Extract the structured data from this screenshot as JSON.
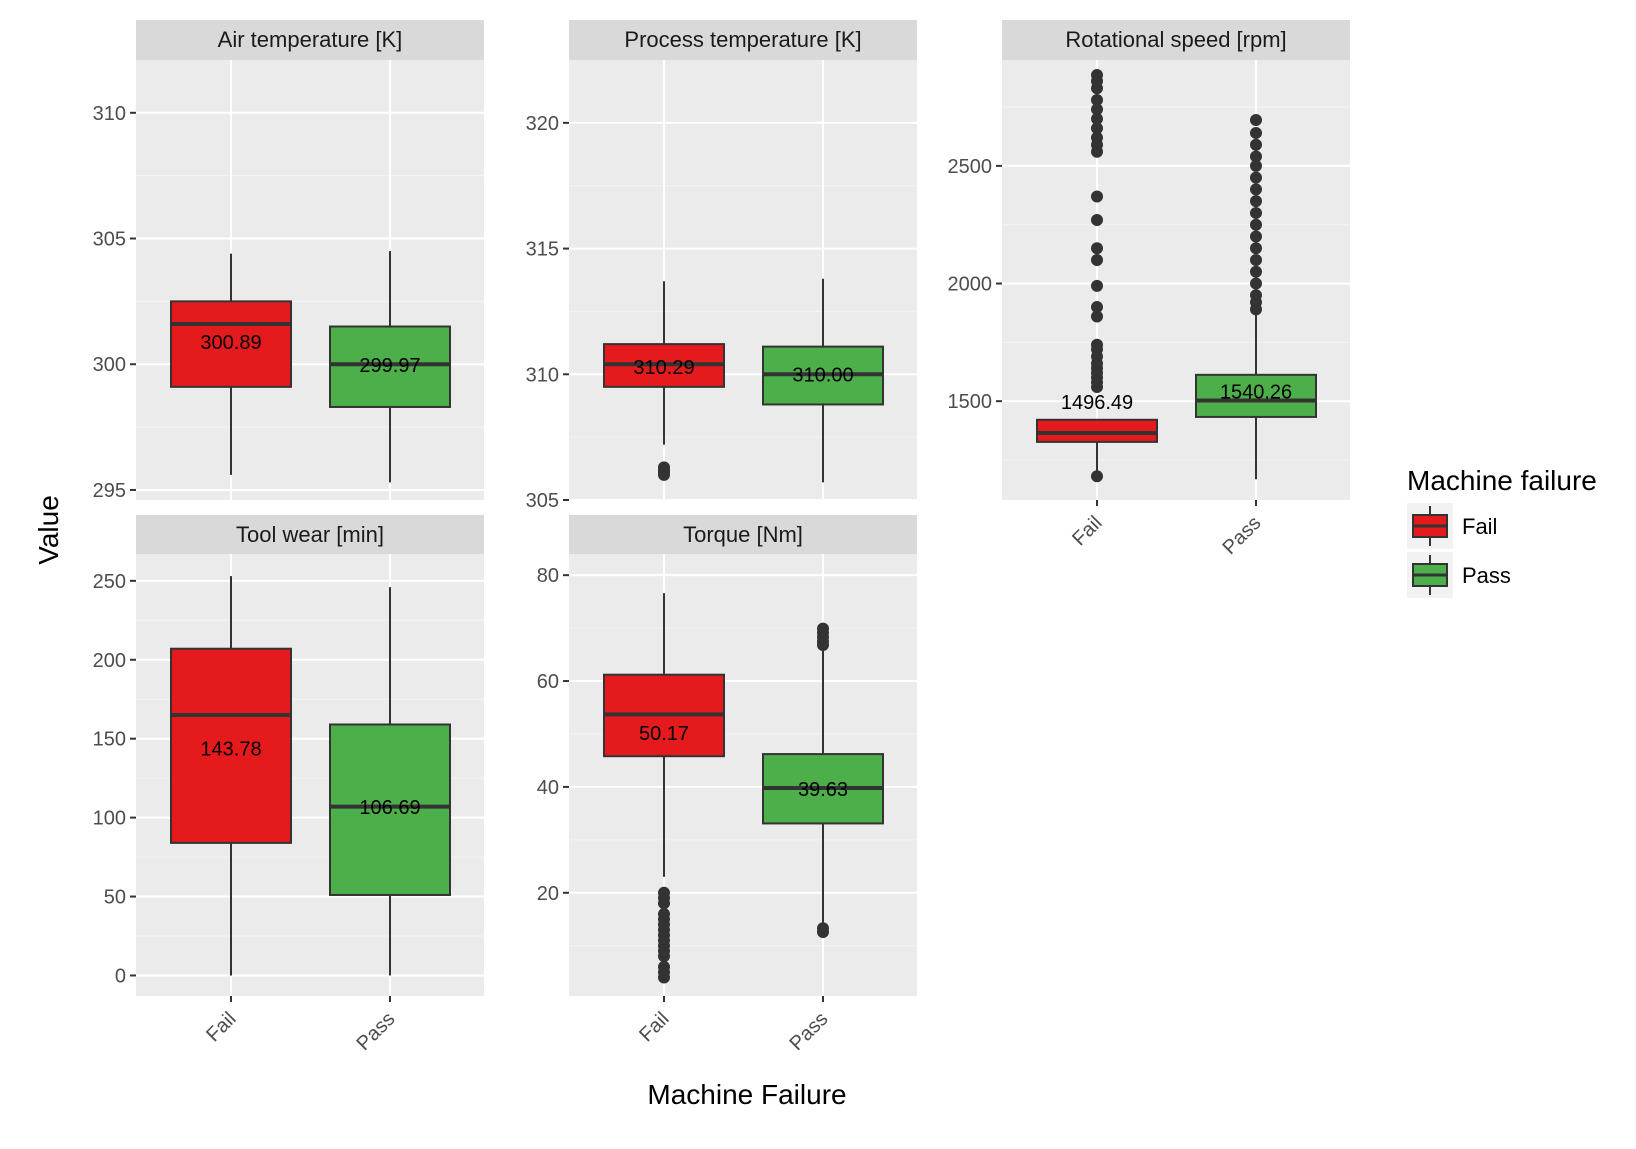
{
  "axis_titles": {
    "x": "Machine Failure",
    "y": "Value"
  },
  "legend": {
    "title": "Machine failure",
    "placement": "right",
    "items": [
      {
        "label": "Fail",
        "color": "#e41a1c"
      },
      {
        "label": "Pass",
        "color": "#4daf4a"
      }
    ]
  },
  "chart_data": {
    "type": "boxplot",
    "categories": [
      "Fail",
      "Pass"
    ],
    "colors": {
      "Fail": "#e41a1c",
      "Pass": "#4daf4a"
    },
    "panel_background": "#ebebeb",
    "strip_background": "#d9d9d9",
    "grid": true,
    "facets": [
      {
        "title": "Air temperature [K]",
        "ylim": [
          294.6,
          312.1
        ],
        "yticks": [
          295,
          300,
          305,
          310
        ],
        "x_ticks_shown": false,
        "boxes": [
          {
            "category": "Fail",
            "whisker_low": 295.6,
            "q1": 299.1,
            "median": 301.6,
            "q3": 302.5,
            "whisker_high": 304.4,
            "outliers": [],
            "mean_label": "300.89"
          },
          {
            "category": "Pass",
            "whisker_low": 295.3,
            "q1": 298.3,
            "median": 300.0,
            "q3": 301.5,
            "whisker_high": 304.5,
            "outliers": [],
            "mean_label": "299.97"
          }
        ]
      },
      {
        "title": "Process temperature [K]",
        "ylim": [
          305.0,
          322.5
        ],
        "yticks": [
          305,
          310,
          315,
          320
        ],
        "x_ticks_shown": false,
        "boxes": [
          {
            "category": "Fail",
            "whisker_low": 307.2,
            "q1": 309.5,
            "median": 310.4,
            "q3": 311.2,
            "whisker_high": 313.7,
            "outliers": [
              306.0,
              306.1,
              306.2,
              306.3
            ],
            "mean_label": "310.29"
          },
          {
            "category": "Pass",
            "whisker_low": 305.7,
            "q1": 308.8,
            "median": 310.0,
            "q3": 311.1,
            "whisker_high": 313.8,
            "outliers": [],
            "mean_label": "310.00"
          }
        ]
      },
      {
        "title": "Rotational speed [rpm]",
        "ylim": [
          1080,
          2950
        ],
        "yticks": [
          1500,
          2000,
          2500
        ],
        "x_ticks_shown": true,
        "boxes": [
          {
            "category": "Fail",
            "whisker_low": 1181,
            "q1": 1327,
            "median": 1365,
            "q3": 1421,
            "whisker_high": 1421,
            "outliers": [
              1181,
              1560,
              1580,
              1600,
              1620,
              1640,
              1660,
              1690,
              1720,
              1740,
              1860,
              1900,
              1990,
              2100,
              2150,
              2270,
              2370,
              2560,
              2590,
              2620,
              2660,
              2700,
              2740,
              2780,
              2830,
              2860,
              2886
            ],
            "mean_label": "1496.49"
          },
          {
            "category": "Pass",
            "whisker_low": 1168,
            "q1": 1433,
            "median": 1503,
            "q3": 1612,
            "whisker_high": 1880,
            "outliers": [
              1890,
              1920,
              1950,
              2000,
              2050,
              2100,
              2150,
              2200,
              2250,
              2300,
              2350,
              2400,
              2450,
              2500,
              2540,
              2590,
              2640,
              2695
            ],
            "mean_label": "1540.26"
          }
        ]
      },
      {
        "title": "Tool wear [min]",
        "ylim": [
          -13,
          267
        ],
        "yticks": [
          0,
          50,
          100,
          150,
          200,
          250
        ],
        "x_ticks_shown": true,
        "boxes": [
          {
            "category": "Fail",
            "whisker_low": 0,
            "q1": 84,
            "median": 165,
            "q3": 207,
            "whisker_high": 253,
            "outliers": [],
            "mean_label": "143.78"
          },
          {
            "category": "Pass",
            "whisker_low": 0,
            "q1": 51,
            "median": 107,
            "q3": 159,
            "whisker_high": 246,
            "outliers": [],
            "mean_label": "106.69"
          }
        ]
      },
      {
        "title": "Torque [Nm]",
        "ylim": [
          0.5,
          84
        ],
        "yticks": [
          20,
          40,
          60,
          80
        ],
        "x_ticks_shown": true,
        "boxes": [
          {
            "category": "Fail",
            "whisker_low": 23,
            "q1": 45.8,
            "median": 53.7,
            "q3": 61.2,
            "whisker_high": 76.6,
            "outliers": [
              4.0,
              5.0,
              6.0,
              8.0,
              9.0,
              10.0,
              11.0,
              12.0,
              13.0,
              14.0,
              15.0,
              16.0,
              18.0,
              19.0,
              20.0
            ],
            "mean_label": "50.17"
          },
          {
            "category": "Pass",
            "whisker_low": 13.5,
            "q1": 33.1,
            "median": 39.8,
            "q3": 46.2,
            "whisker_high": 66.2,
            "outliers": [
              12.6,
              13.3,
              66.8,
              67.5,
              68.3,
              69.1,
              69.9
            ],
            "mean_label": "39.63"
          }
        ]
      }
    ]
  }
}
